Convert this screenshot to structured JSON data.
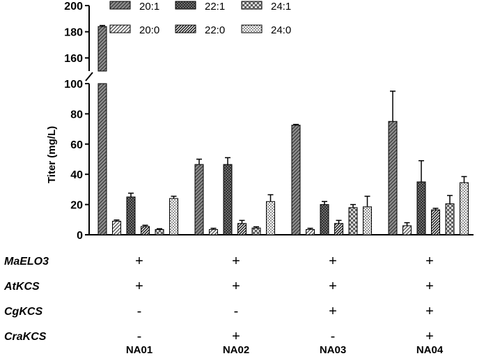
{
  "chart_data": {
    "type": "bar",
    "title": "",
    "ylabel": "Titer (mg/L)",
    "xlabel": "",
    "y_axis_break": {
      "lower": [
        0,
        100
      ],
      "upper": [
        150,
        200
      ]
    },
    "lower_ticks": [
      0,
      20,
      40,
      60,
      80,
      100
    ],
    "upper_ticks": [
      160,
      180,
      200
    ],
    "categories": [
      "NA01",
      "NA02",
      "NA03",
      "NA04"
    ],
    "legend_position": "top",
    "series": [
      {
        "name": "20:1",
        "values": [
          184,
          46.5,
          72.5,
          75
        ],
        "errors": [
          0.8,
          3.5,
          0.5,
          20
        ],
        "pattern": "hatch-gray"
      },
      {
        "name": "20:0",
        "values": [
          9,
          3.5,
          3.5,
          6
        ],
        "errors": [
          0.8,
          0.8,
          0.8,
          2
        ],
        "pattern": "hatch-light"
      },
      {
        "name": "22:1",
        "values": [
          25,
          46.5,
          20,
          35
        ],
        "errors": [
          2.5,
          4.5,
          2,
          14
        ],
        "pattern": "dark-grid"
      },
      {
        "name": "22:0",
        "values": [
          5.5,
          7.5,
          7.5,
          16.5
        ],
        "errors": [
          0.8,
          2,
          2,
          1
        ],
        "pattern": "hatch-dense"
      },
      {
        "name": "24:1",
        "values": [
          3.5,
          4.5,
          18,
          20.5
        ],
        "errors": [
          0.5,
          0.8,
          2,
          5.5
        ],
        "pattern": "checker"
      },
      {
        "name": "24:0",
        "values": [
          24,
          22,
          18.5,
          34.5
        ],
        "errors": [
          1.5,
          4.5,
          7,
          4
        ],
        "pattern": "dots"
      }
    ],
    "genotype_rows": [
      {
        "gene": "MaELO3",
        "marks": [
          "+",
          "+",
          "+",
          "+"
        ]
      },
      {
        "gene": "AtKCS",
        "marks": [
          "+",
          "+",
          "+",
          "+"
        ]
      },
      {
        "gene": "CgKCS",
        "marks": [
          "-",
          "-",
          "+",
          "+"
        ]
      },
      {
        "gene": "CraKCS",
        "marks": [
          "-",
          "+",
          "-",
          "+"
        ]
      }
    ]
  }
}
